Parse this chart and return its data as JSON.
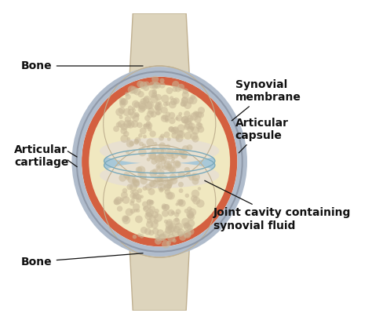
{
  "bg_color": "#ffffff",
  "bone_color": "#e8e0d0",
  "bone_color2": "#d8ceb8",
  "bone_outline_color": "#c0b090",
  "bone_texture_color": "#c8b898",
  "cartilage_color": "#a8c8d8",
  "cartilage_outline": "#7aaabb",
  "synovial_membrane_color": "#d46040",
  "synovial_inner_color": "#e8a080",
  "joint_cavity_color": "#f0e8c0",
  "capsule_fill_color": "#f5f0e8",
  "capsule_outer_color": "#b0bccc",
  "capsule_inner_color": "#c8d4e0",
  "shaft_color": "#ddd4bc",
  "labels": {
    "bone_top": "Bone",
    "bone_bottom": "Bone",
    "articular_cartilage": "Articular\ncartilage",
    "synovial_membrane": "Synovial\nmembrane",
    "articular_capsule": "Articular\ncapsule",
    "joint_cavity": "Joint cavity containing\nsynovial fluid"
  },
  "label_fontsize": 9,
  "label_color": "#111111",
  "figsize": [
    4.74,
    4.13
  ],
  "dpi": 100
}
